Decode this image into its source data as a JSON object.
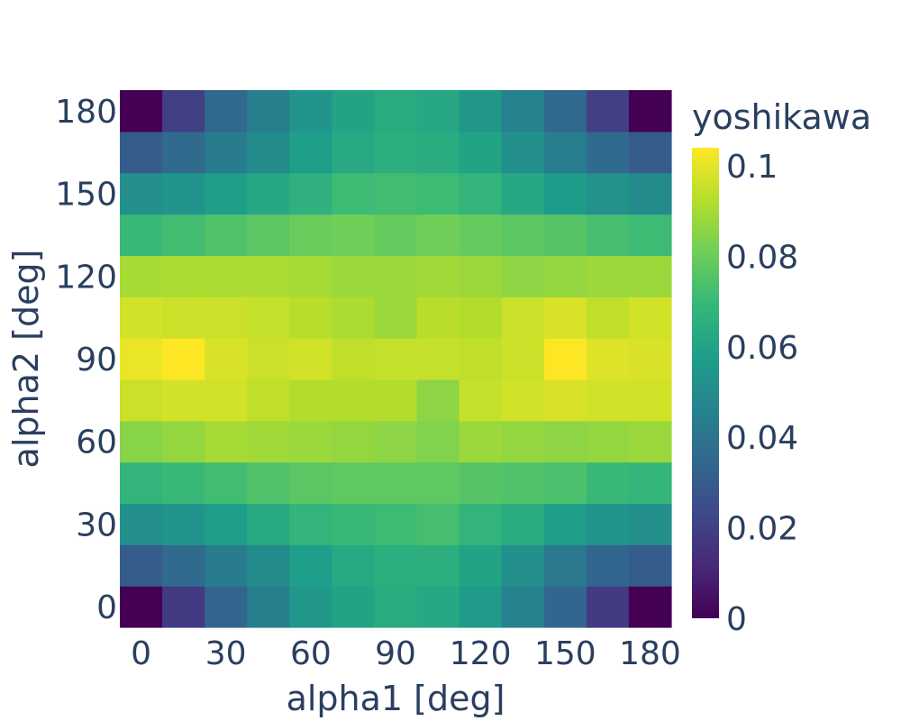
{
  "chart_data": {
    "type": "heatmap",
    "xlabel": "alpha1 [deg]",
    "ylabel": "alpha2 [deg]",
    "colorbar_title": "yoshikawa",
    "colorscale": "Viridis",
    "zlim": [
      0,
      0.104
    ],
    "x": [
      0,
      15,
      30,
      45,
      60,
      75,
      90,
      105,
      120,
      135,
      150,
      165,
      180
    ],
    "y": [
      0,
      15,
      30,
      45,
      60,
      75,
      90,
      105,
      120,
      135,
      150,
      165,
      180
    ],
    "x_ticks": [
      "0",
      "30",
      "60",
      "90",
      "120",
      "150",
      "180"
    ],
    "y_ticks": [
      "0",
      "30",
      "60",
      "90",
      "120",
      "150",
      "180"
    ],
    "colorbar_ticks": [
      "0",
      "0.02",
      "0.04",
      "0.06",
      "0.08",
      "0.1"
    ],
    "z": [
      [
        0.0,
        0.018,
        0.033,
        0.045,
        0.055,
        0.06,
        0.064,
        0.062,
        0.056,
        0.046,
        0.034,
        0.018,
        0.0
      ],
      [
        0.03,
        0.036,
        0.043,
        0.05,
        0.058,
        0.063,
        0.065,
        0.065,
        0.06,
        0.052,
        0.042,
        0.034,
        0.03
      ],
      [
        0.052,
        0.054,
        0.058,
        0.063,
        0.068,
        0.07,
        0.071,
        0.073,
        0.068,
        0.064,
        0.058,
        0.054,
        0.052
      ],
      [
        0.068,
        0.07,
        0.072,
        0.075,
        0.077,
        0.078,
        0.078,
        0.078,
        0.076,
        0.075,
        0.074,
        0.07,
        0.069
      ],
      [
        0.085,
        0.087,
        0.09,
        0.089,
        0.088,
        0.087,
        0.086,
        0.084,
        0.088,
        0.087,
        0.086,
        0.087,
        0.088
      ],
      [
        0.096,
        0.097,
        0.097,
        0.094,
        0.092,
        0.092,
        0.092,
        0.086,
        0.095,
        0.097,
        0.098,
        0.097,
        0.097
      ],
      [
        0.101,
        0.104,
        0.098,
        0.096,
        0.097,
        0.094,
        0.095,
        0.095,
        0.094,
        0.096,
        0.104,
        0.099,
        0.098
      ],
      [
        0.097,
        0.096,
        0.096,
        0.095,
        0.093,
        0.091,
        0.088,
        0.093,
        0.092,
        0.096,
        0.098,
        0.094,
        0.097
      ],
      [
        0.09,
        0.091,
        0.091,
        0.091,
        0.09,
        0.088,
        0.088,
        0.089,
        0.088,
        0.086,
        0.087,
        0.088,
        0.088
      ],
      [
        0.07,
        0.072,
        0.075,
        0.077,
        0.08,
        0.081,
        0.079,
        0.081,
        0.079,
        0.077,
        0.076,
        0.073,
        0.071
      ],
      [
        0.052,
        0.054,
        0.058,
        0.062,
        0.066,
        0.071,
        0.072,
        0.071,
        0.068,
        0.062,
        0.057,
        0.053,
        0.05
      ],
      [
        0.03,
        0.036,
        0.043,
        0.05,
        0.058,
        0.063,
        0.065,
        0.064,
        0.06,
        0.052,
        0.044,
        0.036,
        0.03
      ],
      [
        0.0,
        0.02,
        0.035,
        0.045,
        0.054,
        0.06,
        0.064,
        0.062,
        0.055,
        0.046,
        0.035,
        0.02,
        0.0
      ]
    ]
  }
}
